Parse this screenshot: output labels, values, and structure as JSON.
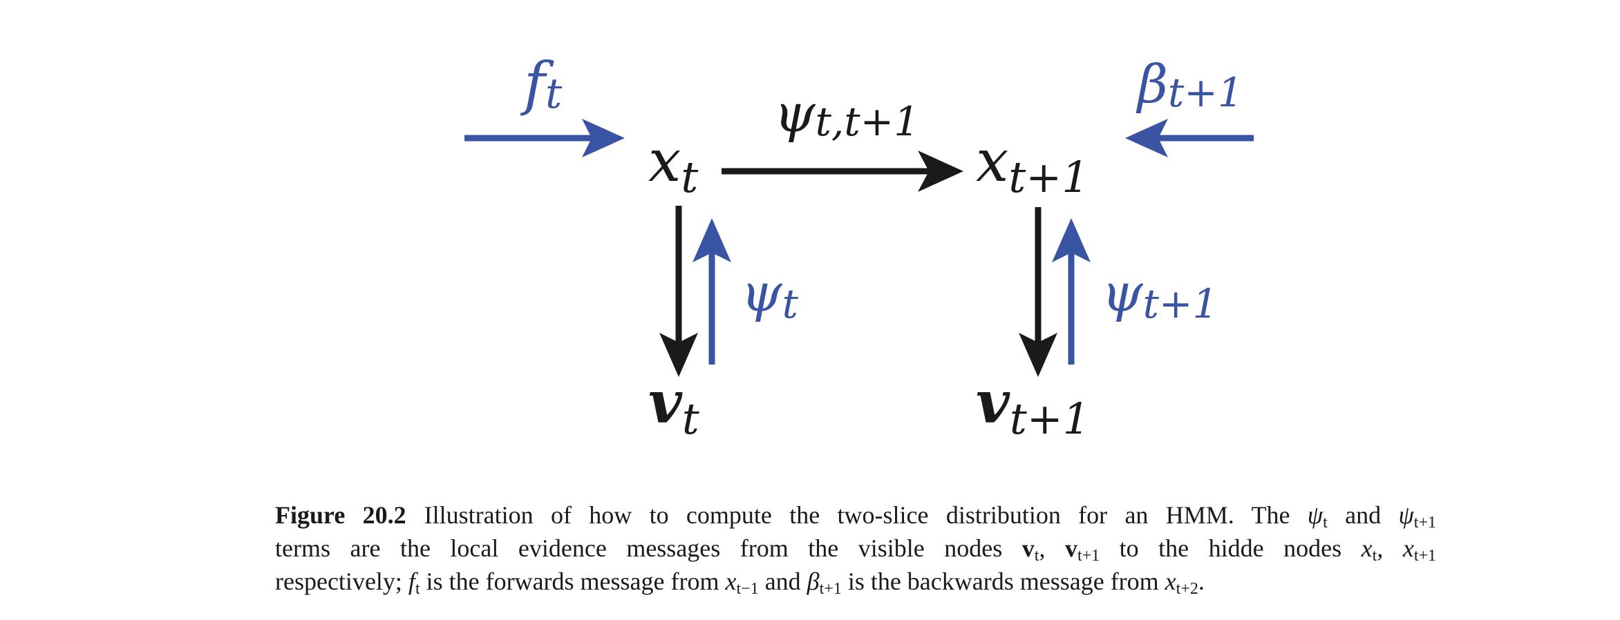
{
  "diagram": {
    "nodes": {
      "xt": {
        "base": "x",
        "sub": "t"
      },
      "xt1": {
        "base": "x",
        "sub": "t+1"
      },
      "vt": {
        "base": "v",
        "sub": "t"
      },
      "vt1": {
        "base": "v",
        "sub": "t+1"
      }
    },
    "edge_labels": {
      "psi_t_t1": {
        "base": "ψ",
        "sub": "t,t+1"
      },
      "psi_t": {
        "base": "ψ",
        "sub": "t"
      },
      "psi_t1": {
        "base": "ψ",
        "sub": "t+1"
      },
      "f_t": {
        "base": "f",
        "sub": "t"
      },
      "beta_t1": {
        "base": "β",
        "sub": "t+1"
      }
    },
    "colors": {
      "black": "#1a1a1a",
      "blue": "#3a54a4"
    }
  },
  "caption": {
    "label": "Figure 20.2",
    "line1": {
      "text_a": "Illustration of how to compute the two-slice distribution for an HMM. The ",
      "psi": "ψ",
      "sub_t": "t",
      "and": " and ",
      "sub_t1": "t+1"
    },
    "line2": {
      "text_a": "terms are the local evidence messages from the visible nodes ",
      "v": "v",
      "sub_t": "t",
      "comma": ", ",
      "sub_t1": "t+1",
      "text_b": " to the hidde nodes ",
      "x": "x"
    },
    "line3": {
      "text_a": "respectively; ",
      "f": "f",
      "sub_t": "t",
      "text_b": " is the forwards message from ",
      "x": "x",
      "sub_tm1": "t−1",
      "and": " and ",
      "beta": "β",
      "sub_t1": "t+1",
      "text_c": " is the backwards message from ",
      "sub_t2": "t+2",
      "period": "."
    }
  }
}
